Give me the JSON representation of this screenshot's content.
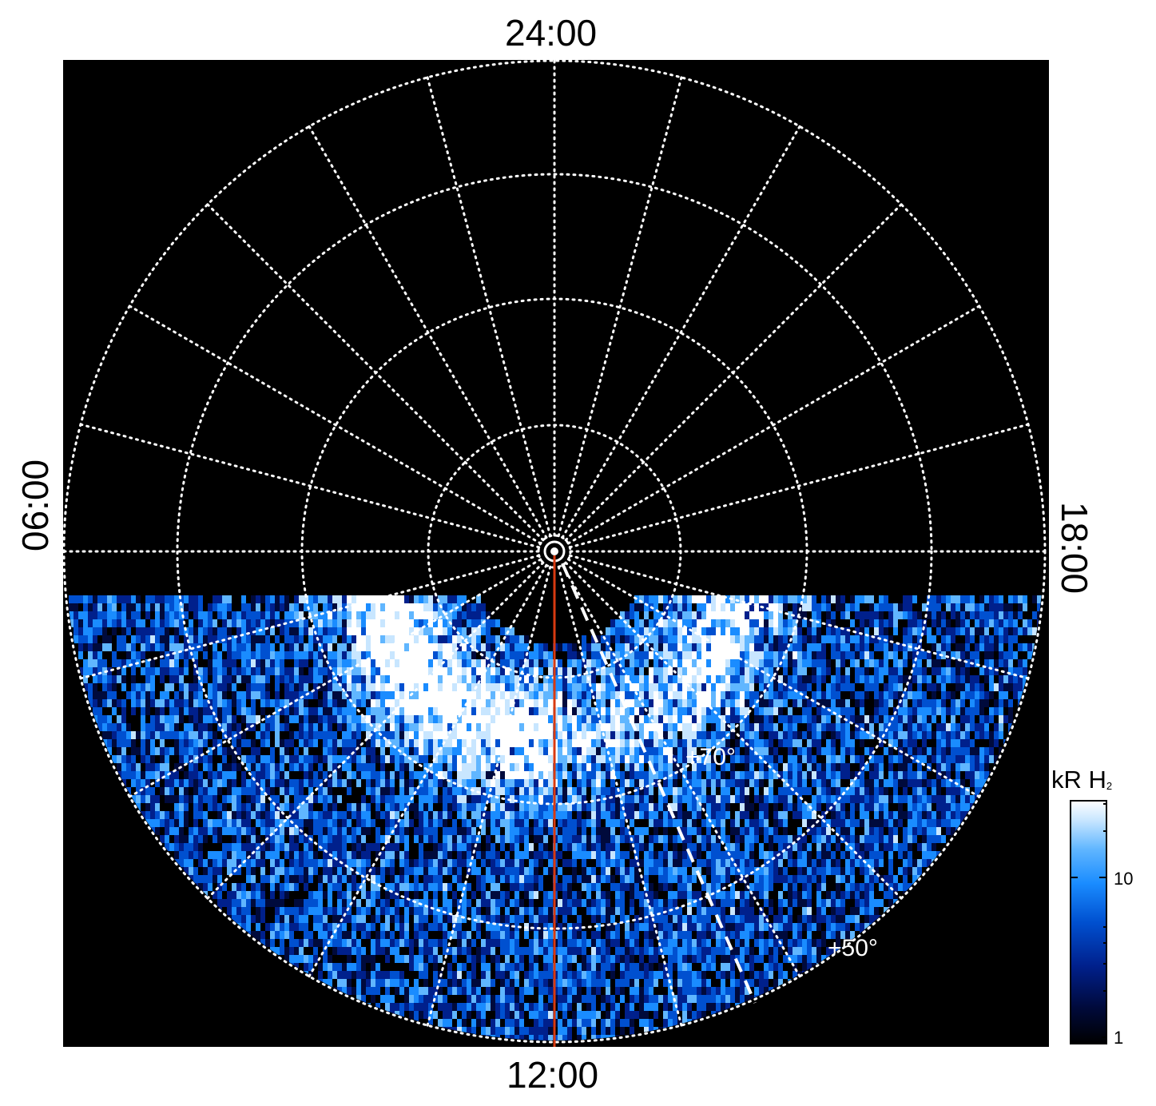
{
  "local_time_labels": {
    "top": "24:00",
    "bottom": "12:00",
    "left": "06:00",
    "right": "18:00"
  },
  "latitude_labels": {
    "inner": "+70°",
    "outer": "+50°"
  },
  "colorbar": {
    "unit": "kR H",
    "unit_subscript": "2",
    "ticks": [
      "10",
      "1"
    ],
    "colors": [
      "#000000",
      "#000a3c",
      "#00208c",
      "#0050d0",
      "#1a8cff",
      "#60b6ff",
      "#c8e6ff",
      "#ffffff"
    ]
  },
  "colors": {
    "background": "#000000",
    "grid": "#ffffff",
    "meridian_line": "#d83a10"
  }
}
